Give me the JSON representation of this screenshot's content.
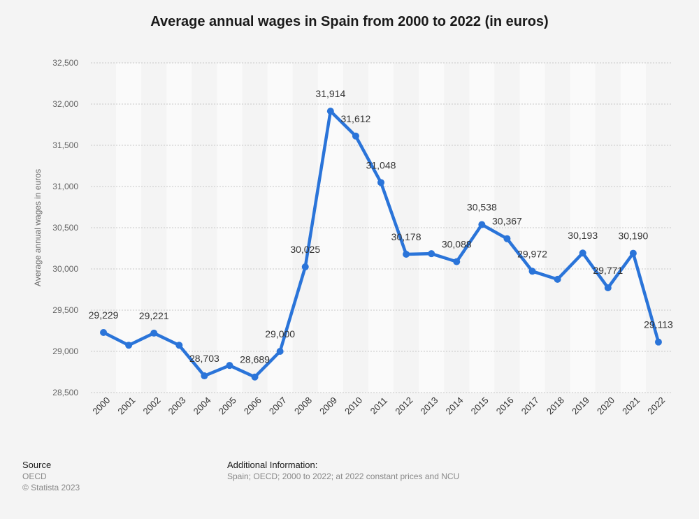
{
  "chart_data": {
    "type": "line",
    "title": "Average annual wages in Spain from 2000 to 2022 (in euros)",
    "ylabel": "Average annual wages in euros",
    "xlabel": "",
    "categories": [
      "2000",
      "2001",
      "2002",
      "2003",
      "2004",
      "2005",
      "2006",
      "2007",
      "2008",
      "2009",
      "2010",
      "2011",
      "2012",
      "2013",
      "2014",
      "2015",
      "2016",
      "2017",
      "2018",
      "2019",
      "2020",
      "2021",
      "2022"
    ],
    "series": [
      {
        "values": [
          29229,
          29074,
          29221,
          29074,
          28703,
          28829,
          28689,
          29000,
          30025,
          31914,
          31612,
          31048,
          30178,
          30185,
          30088,
          30538,
          30367,
          29972,
          29874,
          30193,
          29771,
          30190,
          29113
        ],
        "labels": [
          "29,229",
          "",
          "29,221",
          "",
          "28,703",
          "",
          "28,689",
          "29,000",
          "30,025",
          "31,914",
          "31,612",
          "31,048",
          "30,178",
          "",
          "30,088",
          "30,538",
          "30,367",
          "29,972",
          "",
          "30,193",
          "29,771",
          "30,190",
          "29,113"
        ]
      }
    ],
    "ylim": [
      28500,
      32500
    ],
    "yticks": [
      28500,
      29000,
      29500,
      30000,
      30500,
      31000,
      31500,
      32000,
      32500
    ],
    "ytick_labels": [
      "28,500",
      "29,000",
      "29,500",
      "30,000",
      "30,500",
      "31,000",
      "31,500",
      "32,000",
      "32,500"
    ],
    "grid": true,
    "colors": {
      "line": "#2a74d9",
      "stripe": "#fafafa",
      "grid": "#c8c8c8",
      "text": "#333333",
      "axis_text": "#666666"
    }
  },
  "footer": {
    "source_header": "Source",
    "source_lines": [
      "OECD",
      "© Statista 2023"
    ],
    "info_header": "Additional Information:",
    "info_text": "Spain; OECD; 2000 to 2022; at 2022 constant prices and NCU"
  }
}
